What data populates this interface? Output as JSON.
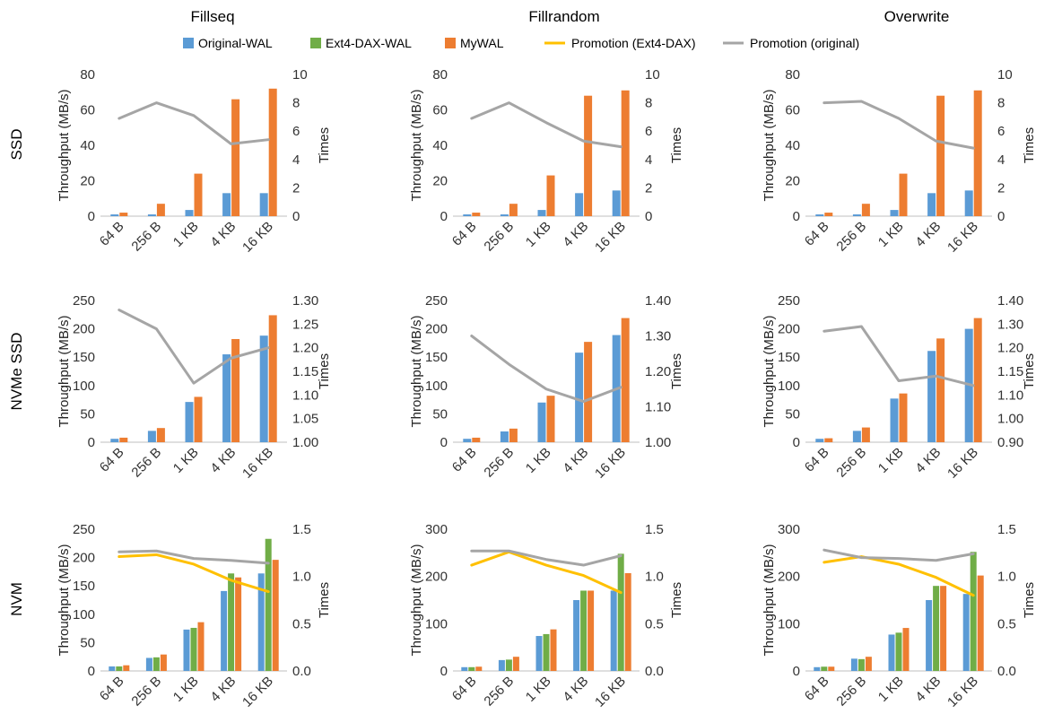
{
  "column_titles": [
    "Fillseq",
    "Fillrandom",
    "Overwrite"
  ],
  "row_labels": [
    "SSD",
    "NVMe SSD",
    "NVM"
  ],
  "legend": [
    {
      "label": "Original-WAL",
      "kind": "bar",
      "color": "#5b9bd5"
    },
    {
      "label": "Ext4-DAX-WAL",
      "kind": "bar",
      "color": "#70ad47"
    },
    {
      "label": "MyWAL",
      "kind": "bar",
      "color": "#ed7d31"
    },
    {
      "label": "Promotion (Ext4-DAX)",
      "kind": "line",
      "color": "#ffc000"
    },
    {
      "label": "Promotion (original)",
      "kind": "line",
      "color": "#a5a5a5"
    }
  ],
  "chart_data": [
    {
      "type": "bar",
      "row": "SSD",
      "column": "Fillseq",
      "categories": [
        "64 B",
        "256 B",
        "1 KB",
        "4 KB",
        "16 KB"
      ],
      "ylabel": "Throughput (MB/s)",
      "y2label": "Times",
      "ylim": [
        0,
        80
      ],
      "yticks": [
        "0",
        "20",
        "40",
        "60",
        "80"
      ],
      "y2lim": [
        0,
        10
      ],
      "y2ticks": [
        "0",
        "2",
        "4",
        "6",
        "8",
        "10"
      ],
      "series": [
        {
          "name": "Original-WAL",
          "values": [
            1,
            1,
            3.5,
            13,
            13
          ]
        },
        {
          "name": "MyWAL",
          "values": [
            2,
            7,
            24,
            66,
            72
          ]
        },
        {
          "name": "Promotion (original)",
          "axis": "y2",
          "values": [
            6.9,
            8.0,
            7.1,
            5.1,
            5.4
          ]
        }
      ]
    },
    {
      "type": "bar",
      "row": "SSD",
      "column": "Fillrandom",
      "categories": [
        "64 B",
        "256 B",
        "1 KB",
        "4 KB",
        "16 KB"
      ],
      "ylabel": "Throughput (MB/s)",
      "y2label": "Times",
      "ylim": [
        0,
        80
      ],
      "yticks": [
        "0",
        "20",
        "40",
        "60",
        "80"
      ],
      "y2lim": [
        0,
        10
      ],
      "y2ticks": [
        "0",
        "2",
        "4",
        "6",
        "8",
        "10"
      ],
      "series": [
        {
          "name": "Original-WAL",
          "values": [
            1,
            1,
            3.5,
            13,
            14.5
          ]
        },
        {
          "name": "MyWAL",
          "values": [
            2,
            7,
            23,
            68,
            71
          ]
        },
        {
          "name": "Promotion (original)",
          "axis": "y2",
          "values": [
            6.9,
            8.0,
            6.6,
            5.3,
            4.9
          ]
        }
      ]
    },
    {
      "type": "bar",
      "row": "SSD",
      "column": "Overwrite",
      "categories": [
        "64 B",
        "256 B",
        "1 KB",
        "4 KB",
        "16 KB"
      ],
      "ylabel": "Throughput (MB/s)",
      "y2label": "Times",
      "ylim": [
        0,
        80
      ],
      "yticks": [
        "0",
        "20",
        "40",
        "60",
        "80"
      ],
      "y2lim": [
        0,
        10
      ],
      "y2ticks": [
        "0",
        "2",
        "4",
        "6",
        "8",
        "10"
      ],
      "series": [
        {
          "name": "Original-WAL",
          "values": [
            1,
            1,
            3.5,
            13,
            14.5
          ]
        },
        {
          "name": "MyWAL",
          "values": [
            2,
            7,
            24,
            68,
            71
          ]
        },
        {
          "name": "Promotion (original)",
          "axis": "y2",
          "values": [
            8.0,
            8.1,
            6.9,
            5.3,
            4.8
          ]
        }
      ]
    },
    {
      "type": "bar",
      "row": "NVMe SSD",
      "column": "Fillseq",
      "categories": [
        "64 B",
        "256 B",
        "1 KB",
        "4 KB",
        "16 KB"
      ],
      "ylabel": "Throughput (MB/s)",
      "y2label": "Times",
      "ylim": [
        0,
        250
      ],
      "yticks": [
        "0",
        "50",
        "100",
        "150",
        "200",
        "250"
      ],
      "y2lim": [
        1.0,
        1.3
      ],
      "y2ticks": [
        "1.00",
        "1.05",
        "1.10",
        "1.15",
        "1.20",
        "1.25",
        "1.30"
      ],
      "series": [
        {
          "name": "Original-WAL",
          "values": [
            6,
            20,
            71,
            155,
            188
          ]
        },
        {
          "name": "MyWAL",
          "values": [
            8,
            25,
            80,
            182,
            224
          ]
        },
        {
          "name": "Promotion (original)",
          "axis": "y2",
          "values": [
            1.28,
            1.24,
            1.125,
            1.178,
            1.2
          ]
        }
      ]
    },
    {
      "type": "bar",
      "row": "NVMe SSD",
      "column": "Fillrandom",
      "categories": [
        "64 B",
        "256 B",
        "1 KB",
        "4 KB",
        "16 KB"
      ],
      "ylabel": "Throughput (MB/s)",
      "y2label": "Times",
      "ylim": [
        0,
        250
      ],
      "yticks": [
        "0",
        "50",
        "100",
        "150",
        "200",
        "250"
      ],
      "y2lim": [
        1.0,
        1.4
      ],
      "y2ticks": [
        "1.00",
        "1.10",
        "1.20",
        "1.30",
        "1.40"
      ],
      "series": [
        {
          "name": "Original-WAL",
          "values": [
            6,
            19,
            70,
            158,
            189
          ]
        },
        {
          "name": "MyWAL",
          "values": [
            8,
            24,
            82,
            177,
            219
          ]
        },
        {
          "name": "Promotion (original)",
          "axis": "y2",
          "values": [
            1.3,
            1.22,
            1.15,
            1.115,
            1.155
          ]
        }
      ]
    },
    {
      "type": "bar",
      "row": "NVMe SSD",
      "column": "Overwrite",
      "categories": [
        "64 B",
        "256 B",
        "1 KB",
        "4 KB",
        "16 KB"
      ],
      "ylabel": "Throughput (MB/s)",
      "y2label": "Times",
      "ylim": [
        0,
        250
      ],
      "yticks": [
        "0",
        "50",
        "100",
        "150",
        "200",
        "250"
      ],
      "y2lim": [
        0.9,
        1.4
      ],
      "y2ticks": [
        "0.90",
        "1.00",
        "1.10",
        "1.15",
        "1.20",
        "1.30",
        "1.40"
      ],
      "y2tick_values": [
        0.9,
        1.0,
        1.1,
        1.15,
        1.2,
        1.3,
        1.4
      ],
      "y2tick_positions": [
        0,
        1,
        2,
        3,
        4,
        5,
        6
      ],
      "series": [
        {
          "name": "Original-WAL",
          "values": [
            6,
            20,
            77,
            161,
            200
          ]
        },
        {
          "name": "MyWAL",
          "values": [
            7,
            26,
            86,
            183,
            219
          ]
        },
        {
          "name": "Promotion (original)",
          "axis": "y2",
          "values": [
            1.27,
            1.29,
            1.13,
            1.14,
            1.12
          ]
        }
      ]
    },
    {
      "type": "bar",
      "row": "NVM",
      "column": "Fillseq",
      "categories": [
        "64 B",
        "256 B",
        "1 KB",
        "4 KB",
        "16 KB"
      ],
      "ylabel": "Throughput (MB/s)",
      "y2label": "Times",
      "ylim": [
        0,
        250
      ],
      "yticks": [
        "0",
        "50",
        "100",
        "150",
        "200",
        "250"
      ],
      "y2lim": [
        0,
        1.5
      ],
      "y2ticks": [
        "0.0",
        "0.5",
        "1.0",
        "1.5"
      ],
      "series": [
        {
          "name": "Original-WAL",
          "values": [
            8,
            23,
            73,
            141,
            172
          ]
        },
        {
          "name": "Ext4-DAX-WAL",
          "values": [
            8,
            24,
            76,
            172,
            233
          ]
        },
        {
          "name": "MyWAL",
          "values": [
            10,
            29,
            86,
            165,
            196
          ]
        },
        {
          "name": "Promotion (Ext4-DAX)",
          "axis": "y2",
          "values": [
            1.21,
            1.23,
            1.13,
            0.96,
            0.84
          ]
        },
        {
          "name": "Promotion (original)",
          "axis": "y2",
          "values": [
            1.26,
            1.27,
            1.19,
            1.17,
            1.14
          ]
        }
      ]
    },
    {
      "type": "bar",
      "row": "NVM",
      "column": "Fillrandom",
      "categories": [
        "64 B",
        "256 B",
        "1 KB",
        "4 KB",
        "16 KB"
      ],
      "ylabel": "Throughput (MB/s)",
      "y2label": "Times",
      "ylim": [
        0,
        300
      ],
      "yticks": [
        "0",
        "100",
        "200",
        "300"
      ],
      "y2lim": [
        0,
        1.5
      ],
      "y2ticks": [
        "0.0",
        "0.5",
        "1.0",
        "1.5"
      ],
      "series": [
        {
          "name": "Original-WAL",
          "values": [
            8,
            23,
            74,
            150,
            170
          ]
        },
        {
          "name": "Ext4-DAX-WAL",
          "values": [
            8,
            24,
            78,
            170,
            248
          ]
        },
        {
          "name": "MyWAL",
          "values": [
            9,
            30,
            88,
            170,
            207
          ]
        },
        {
          "name": "Promotion (Ext4-DAX)",
          "axis": "y2",
          "values": [
            1.12,
            1.26,
            1.12,
            1.01,
            0.83
          ]
        },
        {
          "name": "Promotion (original)",
          "axis": "y2",
          "values": [
            1.27,
            1.27,
            1.18,
            1.12,
            1.22
          ]
        }
      ]
    },
    {
      "type": "bar",
      "row": "NVM",
      "column": "Overwrite",
      "categories": [
        "64 B",
        "256 B",
        "1 KB",
        "4 KB",
        "16 KB"
      ],
      "ylabel": "Throughput (MB/s)",
      "y2label": "Times",
      "ylim": [
        0,
        300
      ],
      "yticks": [
        "0",
        "100",
        "200",
        "300"
      ],
      "y2lim": [
        0,
        1.5
      ],
      "y2ticks": [
        "0.0",
        "0.5",
        "1.0",
        "1.5"
      ],
      "series": [
        {
          "name": "Original-WAL",
          "values": [
            8,
            26,
            77,
            150,
            163
          ]
        },
        {
          "name": "Ext4-DAX-WAL",
          "values": [
            9,
            25,
            81,
            180,
            252
          ]
        },
        {
          "name": "MyWAL",
          "values": [
            9,
            30,
            91,
            180,
            202
          ]
        },
        {
          "name": "Promotion (Ext4-DAX)",
          "axis": "y2",
          "values": [
            1.15,
            1.21,
            1.13,
            0.99,
            0.8
          ]
        },
        {
          "name": "Promotion (original)",
          "axis": "y2",
          "values": [
            1.28,
            1.2,
            1.19,
            1.17,
            1.24
          ]
        }
      ]
    }
  ]
}
